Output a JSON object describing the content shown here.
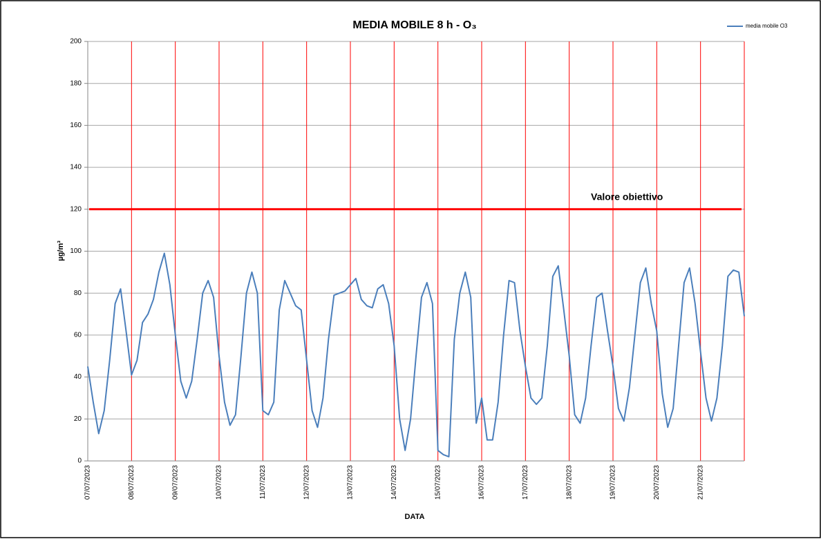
{
  "chart_data": {
    "type": "line",
    "title": "MEDIA MOBILE 8 h - O₃",
    "y_label": "µg/m³",
    "x_label": "DATA",
    "categories": [
      "07/07/2023",
      null,
      null,
      null,
      null,
      null,
      null,
      null,
      "08/07/2023",
      null,
      null,
      null,
      null,
      null,
      null,
      null,
      "09/07/2023",
      null,
      null,
      null,
      null,
      null,
      null,
      null,
      "10/07/2023",
      null,
      null,
      null,
      null,
      null,
      null,
      null,
      "11/07/2023",
      null,
      null,
      null,
      null,
      null,
      null,
      null,
      "12/07/2023",
      null,
      null,
      null,
      null,
      null,
      null,
      null,
      "13/07/2023",
      null,
      null,
      null,
      null,
      null,
      null,
      null,
      "14/07/2023",
      null,
      null,
      null,
      null,
      null,
      null,
      null,
      "15/07/2023",
      null,
      null,
      null,
      null,
      null,
      null,
      null,
      "16/07/2023",
      null,
      null,
      null,
      null,
      null,
      null,
      null,
      "17/07/2023",
      null,
      null,
      null,
      null,
      null,
      null,
      null,
      "18/07/2023",
      null,
      null,
      null,
      null,
      null,
      null,
      null,
      "19/07/2023",
      null,
      null,
      null,
      null,
      null,
      null,
      null,
      "20/07/2023",
      null,
      null,
      null,
      null,
      null,
      null,
      null,
      "21/07/2023",
      null,
      null,
      null,
      null,
      null,
      null,
      null,
      null
    ],
    "series": [
      {
        "name": "media mobile O3",
        "color": "#4a7ebb",
        "values": [
          45,
          28,
          13,
          24,
          48,
          75,
          82,
          62,
          41,
          48,
          66,
          70,
          77,
          90,
          99,
          84,
          60,
          38,
          30,
          38,
          58,
          80,
          86,
          78,
          50,
          28,
          17,
          22,
          50,
          80,
          90,
          80,
          24,
          22,
          28,
          72,
          86,
          80,
          74,
          72,
          48,
          24,
          16,
          30,
          58,
          79,
          80,
          81,
          84,
          87,
          77,
          74,
          73,
          82,
          84,
          75,
          55,
          20,
          5,
          20,
          50,
          78,
          85,
          75,
          5,
          3,
          2,
          58,
          80,
          90,
          78,
          18,
          30,
          10,
          10,
          28,
          60,
          86,
          85,
          62,
          45,
          30,
          27,
          30,
          55,
          88,
          93,
          72,
          50,
          22,
          18,
          30,
          55,
          78,
          80,
          62,
          45,
          25,
          19,
          35,
          60,
          85,
          92,
          75,
          62,
          32,
          16,
          25,
          55,
          85,
          92,
          75,
          52,
          30,
          19,
          30,
          55,
          88,
          91,
          90,
          69
        ]
      }
    ],
    "annotations": [
      {
        "text": "Valore obiettivo",
        "value": 120,
        "color": "#ff0000"
      }
    ],
    "ylim": [
      0,
      200
    ],
    "yticks": [
      0,
      20,
      40,
      60,
      80,
      100,
      120,
      140,
      160,
      180,
      200
    ],
    "grid": true,
    "x_grid_color": "#ff0000",
    "legend": "top-right"
  }
}
